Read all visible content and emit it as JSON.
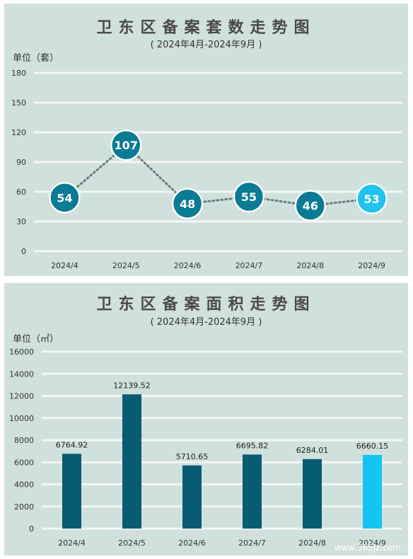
{
  "charts": [
    {
      "title": "卫东区备案套数走势图",
      "subtitle": "( 2024年4月-2024年9月 )",
      "unit_label": "单位（套）"
    },
    {
      "title": "卫东区备案面积走势图",
      "subtitle": "( 2024年4月-2024年9月 )",
      "unit_label": "单位（㎡）"
    }
  ],
  "watermark": "www.365jz.com",
  "chart_data": [
    {
      "type": "line",
      "title": "卫东区备案套数走势图",
      "subtitle": "( 2024年4月-2024年9月 )",
      "ylabel": "单位（套）",
      "categories": [
        "2024/4",
        "2024/5",
        "2024/6",
        "2024/7",
        "2024/8",
        "2024/9"
      ],
      "values": [
        54,
        107,
        48,
        55,
        46,
        53
      ],
      "ylim": [
        0,
        180
      ],
      "yticks": [
        0,
        30,
        60,
        90,
        120,
        150,
        180
      ],
      "grid": true,
      "colors": {
        "marker": "#0b7a95",
        "highlight": "#1fc3ee",
        "line": "#6b7c7c"
      }
    },
    {
      "type": "bar",
      "title": "卫东区备案面积走势图",
      "subtitle": "( 2024年4月-2024年9月 )",
      "ylabel": "单位（㎡）",
      "categories": [
        "2024/4",
        "2024/5",
        "2024/6",
        "2024/7",
        "2024/8",
        "2024/9"
      ],
      "values": [
        6764.92,
        12139.52,
        5710.65,
        6695.82,
        6284.01,
        6660.15
      ],
      "ylim": [
        0,
        16000
      ],
      "yticks": [
        0,
        2000,
        4000,
        6000,
        8000,
        10000,
        12000,
        14000,
        16000
      ],
      "grid": true,
      "colors": {
        "bar": "#075b72",
        "highlight": "#14c5ef"
      }
    }
  ]
}
